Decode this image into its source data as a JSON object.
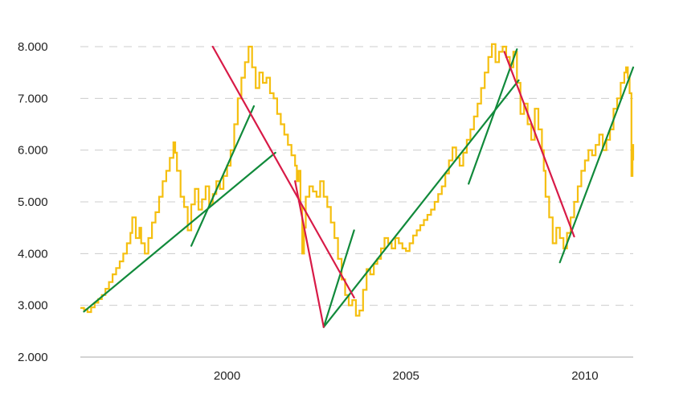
{
  "chart_data": {
    "type": "line",
    "title": "",
    "xlabel": "",
    "ylabel": "",
    "xlim": [
      1995.9,
      2011.35
    ],
    "ylim": [
      2000,
      8000
    ],
    "grid": "horizontal-dashed",
    "legend": "none",
    "x_ticks": [
      {
        "value": 2000,
        "label": "2000"
      },
      {
        "value": 2005,
        "label": "2005"
      },
      {
        "value": 2010,
        "label": "2010"
      }
    ],
    "y_ticks": [
      {
        "value": 2000,
        "label": "2.000"
      },
      {
        "value": 3000,
        "label": "3.000"
      },
      {
        "value": 4000,
        "label": "4.000"
      },
      {
        "value": 5000,
        "label": "5.000"
      },
      {
        "value": 6000,
        "label": "6.000"
      },
      {
        "value": 7000,
        "label": "7.000"
      },
      {
        "value": 8000,
        "label": "8.000"
      }
    ],
    "series": [
      {
        "color": "#f5bf0f",
        "points": [
          [
            1995.9,
            2950
          ],
          [
            1996.0,
            2920
          ],
          [
            1996.1,
            2870
          ],
          [
            1996.2,
            2960
          ],
          [
            1996.3,
            3050
          ],
          [
            1996.4,
            3120
          ],
          [
            1996.5,
            3200
          ],
          [
            1996.6,
            3320
          ],
          [
            1996.7,
            3450
          ],
          [
            1996.8,
            3600
          ],
          [
            1996.9,
            3720
          ],
          [
            1997.0,
            3850
          ],
          [
            1997.1,
            4000
          ],
          [
            1997.2,
            4200
          ],
          [
            1997.3,
            4400
          ],
          [
            1997.35,
            4700
          ],
          [
            1997.45,
            4300
          ],
          [
            1997.55,
            4500
          ],
          [
            1997.6,
            4200
          ],
          [
            1997.7,
            4000
          ],
          [
            1997.8,
            4300
          ],
          [
            1997.9,
            4600
          ],
          [
            1998.0,
            4800
          ],
          [
            1998.1,
            5100
          ],
          [
            1998.2,
            5400
          ],
          [
            1998.3,
            5600
          ],
          [
            1998.4,
            5850
          ],
          [
            1998.5,
            6150
          ],
          [
            1998.55,
            5950
          ],
          [
            1998.6,
            5600
          ],
          [
            1998.7,
            5100
          ],
          [
            1998.8,
            4900
          ],
          [
            1998.9,
            4450
          ],
          [
            1999.0,
            4950
          ],
          [
            1999.1,
            5250
          ],
          [
            1999.2,
            4850
          ],
          [
            1999.3,
            5050
          ],
          [
            1999.4,
            5300
          ],
          [
            1999.5,
            4950
          ],
          [
            1999.6,
            5150
          ],
          [
            1999.7,
            5400
          ],
          [
            1999.8,
            5250
          ],
          [
            1999.9,
            5500
          ],
          [
            2000.0,
            5700
          ],
          [
            2000.1,
            6000
          ],
          [
            2000.2,
            6500
          ],
          [
            2000.3,
            7000
          ],
          [
            2000.4,
            7400
          ],
          [
            2000.5,
            7700
          ],
          [
            2000.6,
            8000
          ],
          [
            2000.7,
            7600
          ],
          [
            2000.8,
            7200
          ],
          [
            2000.9,
            7500
          ],
          [
            2001.0,
            7300
          ],
          [
            2001.1,
            7400
          ],
          [
            2001.2,
            7100
          ],
          [
            2001.3,
            7000
          ],
          [
            2001.4,
            6700
          ],
          [
            2001.5,
            6500
          ],
          [
            2001.6,
            6300
          ],
          [
            2001.7,
            6100
          ],
          [
            2001.8,
            5900
          ],
          [
            2001.9,
            5700
          ],
          [
            2001.95,
            5400
          ],
          [
            2002.0,
            5600
          ],
          [
            2002.05,
            4900
          ],
          [
            2002.1,
            4000
          ],
          [
            2002.15,
            4500
          ],
          [
            2002.2,
            5100
          ],
          [
            2002.3,
            5300
          ],
          [
            2002.4,
            5200
          ],
          [
            2002.5,
            5100
          ],
          [
            2002.6,
            5400
          ],
          [
            2002.7,
            5100
          ],
          [
            2002.8,
            4900
          ],
          [
            2002.9,
            4600
          ],
          [
            2003.0,
            4300
          ],
          [
            2003.1,
            3900
          ],
          [
            2003.2,
            3500
          ],
          [
            2003.3,
            3200
          ],
          [
            2003.4,
            3000
          ],
          [
            2003.5,
            3100
          ],
          [
            2003.6,
            2800
          ],
          [
            2003.7,
            2900
          ],
          [
            2003.8,
            3300
          ],
          [
            2003.9,
            3700
          ],
          [
            2004.0,
            3600
          ],
          [
            2004.1,
            3800
          ],
          [
            2004.2,
            3900
          ],
          [
            2004.3,
            4100
          ],
          [
            2004.4,
            4300
          ],
          [
            2004.5,
            4200
          ],
          [
            2004.6,
            4100
          ],
          [
            2004.7,
            4300
          ],
          [
            2004.8,
            4200
          ],
          [
            2004.9,
            4100
          ],
          [
            2005.0,
            4050
          ],
          [
            2005.1,
            4200
          ],
          [
            2005.2,
            4350
          ],
          [
            2005.3,
            4450
          ],
          [
            2005.4,
            4550
          ],
          [
            2005.5,
            4650
          ],
          [
            2005.6,
            4750
          ],
          [
            2005.7,
            4850
          ],
          [
            2005.8,
            5000
          ],
          [
            2005.9,
            5150
          ],
          [
            2006.0,
            5300
          ],
          [
            2006.1,
            5550
          ],
          [
            2006.2,
            5800
          ],
          [
            2006.3,
            6050
          ],
          [
            2006.4,
            5850
          ],
          [
            2006.5,
            5700
          ],
          [
            2006.6,
            5950
          ],
          [
            2006.7,
            6200
          ],
          [
            2006.8,
            6400
          ],
          [
            2006.9,
            6650
          ],
          [
            2007.0,
            6900
          ],
          [
            2007.1,
            7200
          ],
          [
            2007.2,
            7500
          ],
          [
            2007.3,
            7800
          ],
          [
            2007.4,
            8050
          ],
          [
            2007.5,
            7700
          ],
          [
            2007.6,
            7900
          ],
          [
            2007.7,
            8000
          ],
          [
            2007.8,
            7800
          ],
          [
            2007.9,
            7600
          ],
          [
            2008.0,
            7900
          ],
          [
            2008.1,
            7300
          ],
          [
            2008.2,
            6700
          ],
          [
            2008.3,
            6900
          ],
          [
            2008.4,
            6500
          ],
          [
            2008.5,
            6200
          ],
          [
            2008.6,
            6800
          ],
          [
            2008.7,
            6400
          ],
          [
            2008.8,
            6000
          ],
          [
            2008.85,
            5600
          ],
          [
            2008.9,
            5100
          ],
          [
            2009.0,
            4700
          ],
          [
            2009.1,
            4200
          ],
          [
            2009.2,
            4500
          ],
          [
            2009.3,
            4300
          ],
          [
            2009.4,
            4100
          ],
          [
            2009.5,
            4400
          ],
          [
            2009.6,
            4700
          ],
          [
            2009.7,
            5000
          ],
          [
            2009.8,
            5300
          ],
          [
            2009.9,
            5600
          ],
          [
            2010.0,
            5800
          ],
          [
            2010.1,
            6000
          ],
          [
            2010.2,
            5900
          ],
          [
            2010.3,
            6100
          ],
          [
            2010.4,
            6300
          ],
          [
            2010.5,
            6000
          ],
          [
            2010.6,
            6200
          ],
          [
            2010.7,
            6400
          ],
          [
            2010.8,
            6800
          ],
          [
            2010.9,
            7000
          ],
          [
            2011.0,
            7300
          ],
          [
            2011.1,
            7500
          ],
          [
            2011.15,
            7600
          ],
          [
            2011.2,
            7400
          ],
          [
            2011.25,
            7100
          ],
          [
            2011.3,
            5500
          ],
          [
            2011.33,
            6100
          ],
          [
            2011.35,
            5800
          ]
        ]
      }
    ],
    "trendlines": [
      {
        "color": "#118a3b",
        "start": [
          1996.0,
          2880
        ],
        "end": [
          2001.35,
          5950
        ]
      },
      {
        "color": "#118a3b",
        "start": [
          1999.0,
          4150
        ],
        "end": [
          2000.75,
          6850
        ]
      },
      {
        "color": "#118a3b",
        "start": [
          2002.7,
          2580
        ],
        "end": [
          2003.55,
          4450
        ]
      },
      {
        "color": "#118a3b",
        "start": [
          2002.7,
          2580
        ],
        "end": [
          2008.15,
          7350
        ]
      },
      {
        "color": "#118a3b",
        "start": [
          2006.75,
          5350
        ],
        "end": [
          2008.1,
          7950
        ]
      },
      {
        "color": "#118a3b",
        "start": [
          2009.3,
          3830
        ],
        "end": [
          2011.35,
          7600
        ]
      },
      {
        "color": "#d81a47",
        "start": [
          1999.6,
          8000
        ],
        "end": [
          2003.55,
          3150
        ]
      },
      {
        "color": "#d81a47",
        "start": [
          2001.9,
          5400
        ],
        "end": [
          2002.7,
          2580
        ]
      },
      {
        "color": "#d81a47",
        "start": [
          2007.75,
          7900
        ],
        "end": [
          2009.7,
          4330
        ]
      }
    ]
  }
}
